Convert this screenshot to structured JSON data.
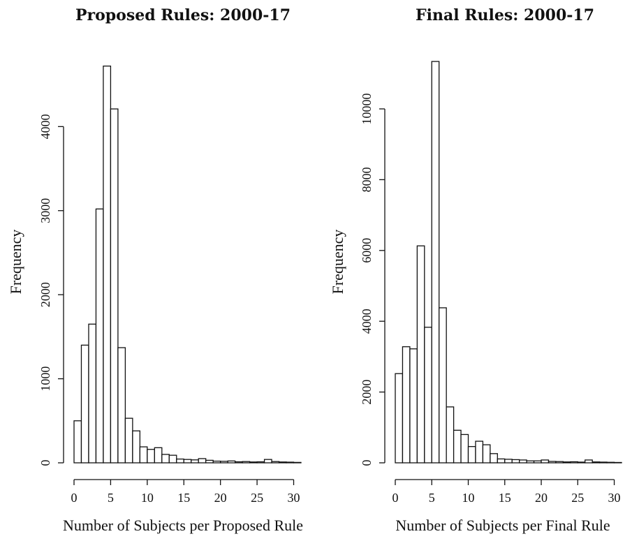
{
  "chart_data": [
    {
      "type": "bar",
      "title": "Proposed Rules: 2000-17",
      "xlabel": "Number of Subjects per Proposed Rule",
      "ylabel": "Frequency",
      "xlim": [
        0,
        31
      ],
      "ylim": [
        0,
        4800
      ],
      "x_ticks": [
        0,
        5,
        10,
        15,
        20,
        25,
        30
      ],
      "y_ticks": [
        0,
        1000,
        2000,
        3000,
        4000
      ],
      "bin_width": 1,
      "bins": [
        0,
        1,
        2,
        3,
        4,
        5,
        6,
        7,
        8,
        9,
        10,
        11,
        12,
        13,
        14,
        15,
        16,
        17,
        18,
        19,
        20,
        21,
        22,
        23,
        24,
        25,
        26,
        27,
        28,
        29,
        30
      ],
      "values": [
        500,
        1400,
        1650,
        3020,
        4720,
        4210,
        1370,
        530,
        380,
        190,
        160,
        180,
        100,
        90,
        45,
        40,
        35,
        50,
        30,
        20,
        18,
        22,
        12,
        15,
        10,
        12,
        40,
        15,
        10,
        8,
        5
      ]
    },
    {
      "type": "bar",
      "title": "Final Rules: 2000-17",
      "xlabel": "Number of Subjects per Final Rule",
      "ylabel": "Frequency",
      "xlim": [
        0,
        31
      ],
      "ylim": [
        0,
        11400
      ],
      "x_ticks": [
        0,
        5,
        10,
        15,
        20,
        25,
        30
      ],
      "y_ticks": [
        0,
        2000,
        4000,
        6000,
        8000,
        10000
      ],
      "bin_width": 1,
      "bins": [
        0,
        1,
        2,
        3,
        4,
        5,
        6,
        7,
        8,
        9,
        10,
        11,
        12,
        13,
        14,
        15,
        16,
        17,
        18,
        19,
        20,
        21,
        22,
        23,
        24,
        25,
        26,
        27,
        28,
        29,
        30
      ],
      "values": [
        2520,
        3280,
        3220,
        6130,
        3830,
        11340,
        4380,
        1580,
        920,
        800,
        460,
        610,
        510,
        260,
        110,
        100,
        90,
        80,
        55,
        55,
        80,
        40,
        35,
        25,
        30,
        20,
        80,
        25,
        20,
        15,
        10
      ]
    }
  ]
}
